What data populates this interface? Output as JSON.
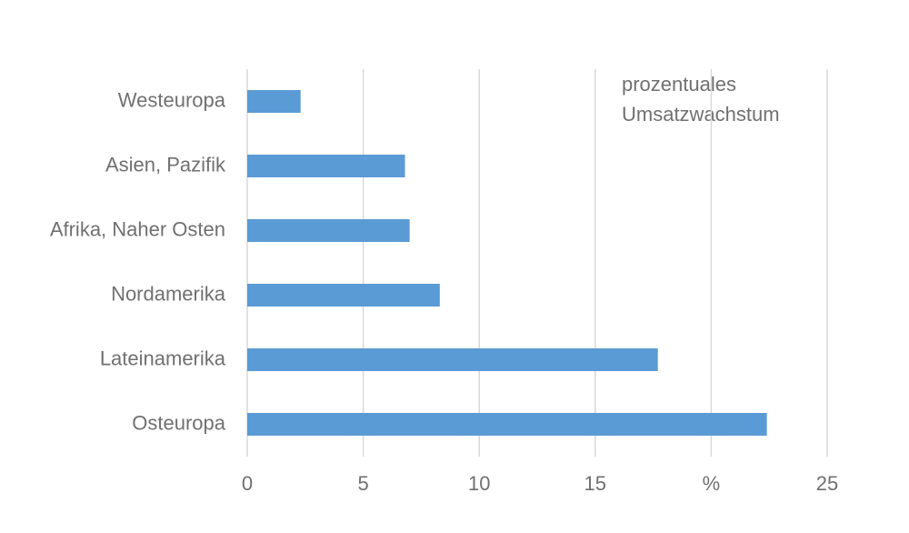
{
  "chart_data": {
    "type": "barh",
    "annotation": [
      "prozentuales",
      "Umsatzwachstum"
    ],
    "categories": [
      "Westeuropa",
      "Asien, Pazifik",
      "Afrika, Naher Osten",
      "Nordamerika",
      "Lateinamerika",
      "Osteuropa"
    ],
    "values": [
      2.3,
      6.8,
      7.0,
      8.3,
      17.7,
      22.4
    ],
    "color": "#5b9bd5",
    "xlim": [
      0,
      25
    ],
    "xticks": [
      0,
      5,
      10,
      15,
      {
        "value": 20,
        "label": "%"
      },
      25
    ],
    "grid": true
  }
}
